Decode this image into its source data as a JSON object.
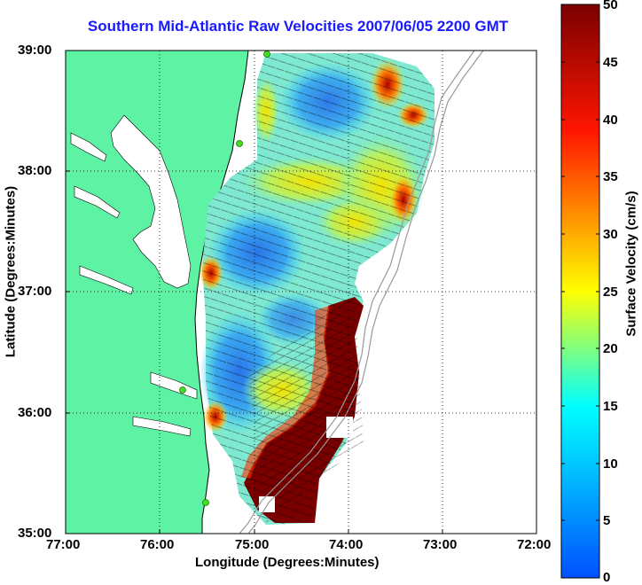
{
  "title": "Southern Mid-Atlantic Raw Velocities 2007/06/05 2200 GMT",
  "xaxis": {
    "label": "Longitude (Degrees:Minutes)",
    "ticks": [
      "77:00",
      "76:00",
      "75:00",
      "74:00",
      "73:00",
      "72:00"
    ]
  },
  "yaxis": {
    "label": "Latitude (Degrees:Minutes)",
    "ticks": [
      "39:00",
      "38:00",
      "37:00",
      "36:00",
      "35:00"
    ]
  },
  "colorbar": {
    "label": "Surface Velocity (cm/s)",
    "ticks": [
      "50",
      "45",
      "40",
      "35",
      "30",
      "25",
      "20",
      "15",
      "10",
      "5",
      "0"
    ],
    "min": 0,
    "max": 50,
    "colors": [
      "#0000ff",
      "#00ffff",
      "#ffff00",
      "#ff0000",
      "#800000"
    ]
  },
  "colors": {
    "land": "#5ef2a4",
    "title": "#1a1aff"
  },
  "chart_data": {
    "type": "heatmap",
    "title": "Southern Mid-Atlantic Raw Velocities 2007/06/05 2200 GMT",
    "xlabel": "Longitude (Degrees:Minutes)",
    "ylabel": "Latitude (Degrees:Minutes)",
    "colorbar_label": "Surface Velocity (cm/s)",
    "xlim": [
      "77:00",
      "72:00"
    ],
    "ylim": [
      "35:00",
      "39:00"
    ],
    "clim": [
      0,
      50
    ],
    "grid": true
  }
}
